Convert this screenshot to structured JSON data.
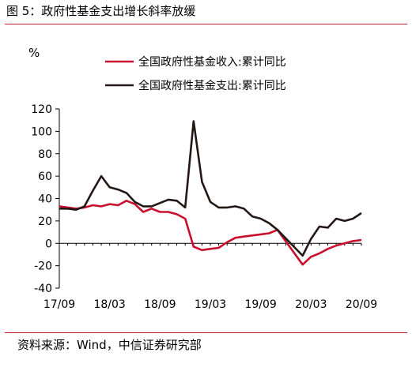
{
  "figure": {
    "title": "图 5：政府性基金支出增长斜率放缓",
    "source": "资料来源：Wind，中信证券研究部"
  },
  "chart_data": {
    "type": "line",
    "ylabel": "%",
    "xlabel": "",
    "ylim": [
      -40,
      120
    ],
    "yticks": [
      -40,
      -20,
      0,
      20,
      40,
      60,
      80,
      100,
      120
    ],
    "xtick_labels": [
      "17/09",
      "18/03",
      "18/09",
      "19/03",
      "19/09",
      "20/03",
      "20/09"
    ],
    "x": [
      "17/09",
      "17/10",
      "17/11",
      "17/12",
      "18/01",
      "18/02",
      "18/03",
      "18/04",
      "18/05",
      "18/06",
      "18/07",
      "18/08",
      "18/09",
      "18/10",
      "18/11",
      "18/12",
      "19/01",
      "19/02",
      "19/03",
      "19/04",
      "19/05",
      "19/06",
      "19/07",
      "19/08",
      "19/09",
      "19/10",
      "19/11",
      "19/12",
      "20/01",
      "20/02",
      "20/03",
      "20/04",
      "20/05",
      "20/06",
      "20/07",
      "20/08",
      "20/09"
    ],
    "grid": false,
    "legend_position": "top-right",
    "series": [
      {
        "name": "全国政府性基金收入:累计同比",
        "color": "#c8102e",
        "values": [
          33,
          32,
          31,
          32,
          34,
          33,
          35,
          34,
          38,
          35,
          28,
          31,
          28,
          28,
          26,
          22,
          -3,
          -6,
          -5,
          -4,
          1,
          5,
          6,
          7,
          8,
          9,
          12,
          null,
          null,
          -19,
          -12,
          -9,
          -5,
          -2,
          0,
          2,
          3
        ]
      },
      {
        "name": "全国政府性基金支出:累计同比",
        "color": "#231815",
        "values": [
          31,
          31,
          30,
          33,
          47,
          60,
          50,
          48,
          45,
          37,
          33,
          33,
          36,
          39,
          38,
          32,
          109,
          55,
          37,
          32,
          32,
          33,
          31,
          24,
          22,
          18,
          12,
          null,
          null,
          -11,
          4,
          15,
          14,
          22,
          20,
          22,
          27
        ]
      }
    ]
  },
  "colors": {
    "accent_rule": "#b3202a",
    "axis": "#000000"
  }
}
